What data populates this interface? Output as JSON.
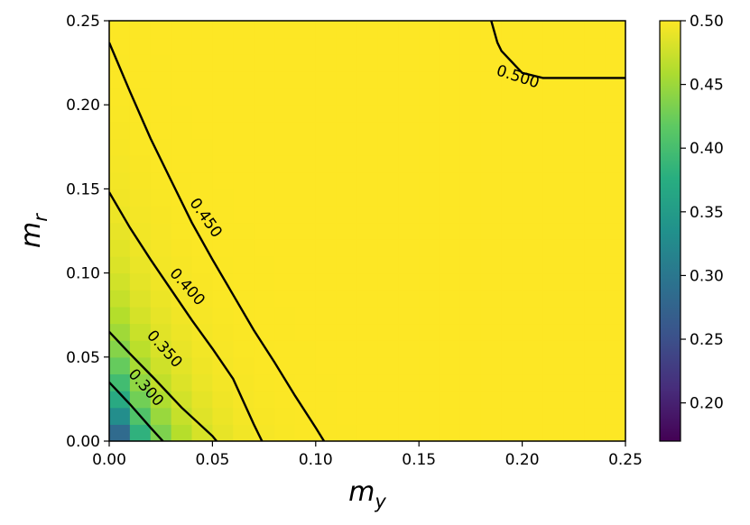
{
  "chart_data": {
    "type": "heatmap",
    "title": "",
    "xlabel": "m_y",
    "ylabel": "m_r",
    "xlim": [
      0.0,
      0.25
    ],
    "ylim": [
      0.0,
      0.25
    ],
    "x_ticks": [
      "0.00",
      "0.05",
      "0.10",
      "0.15",
      "0.20",
      "0.25"
    ],
    "y_ticks": [
      "0.00",
      "0.05",
      "0.10",
      "0.15",
      "0.20",
      "0.25"
    ],
    "grid_resolution": 25,
    "colormap": "viridis",
    "colorbar": {
      "range": [
        0.17,
        0.5
      ],
      "ticks": [
        "0.20",
        "0.25",
        "0.30",
        "0.35",
        "0.40",
        "0.45",
        "0.50"
      ]
    },
    "contours": [
      {
        "level": 0.3,
        "label": "0.300",
        "points": [
          [
            0.0,
            0.035
          ],
          [
            0.01,
            0.022
          ],
          [
            0.02,
            0.008
          ],
          [
            0.026,
            0.0
          ]
        ]
      },
      {
        "level": 0.35,
        "label": "0.350",
        "points": [
          [
            0.0,
            0.065
          ],
          [
            0.01,
            0.052
          ],
          [
            0.022,
            0.037
          ],
          [
            0.035,
            0.02
          ],
          [
            0.05,
            0.003
          ],
          [
            0.052,
            0.0
          ]
        ]
      },
      {
        "level": 0.4,
        "label": "0.400",
        "points": [
          [
            0.0,
            0.148
          ],
          [
            0.01,
            0.127
          ],
          [
            0.02,
            0.108
          ],
          [
            0.03,
            0.09
          ],
          [
            0.04,
            0.072
          ],
          [
            0.05,
            0.055
          ],
          [
            0.06,
            0.037
          ],
          [
            0.07,
            0.01
          ],
          [
            0.074,
            0.0
          ]
        ]
      },
      {
        "level": 0.45,
        "label": "0.450",
        "points": [
          [
            0.0,
            0.237
          ],
          [
            0.01,
            0.208
          ],
          [
            0.02,
            0.18
          ],
          [
            0.03,
            0.155
          ],
          [
            0.04,
            0.13
          ],
          [
            0.05,
            0.108
          ],
          [
            0.06,
            0.087
          ],
          [
            0.07,
            0.066
          ],
          [
            0.08,
            0.047
          ],
          [
            0.09,
            0.027
          ],
          [
            0.1,
            0.008
          ],
          [
            0.104,
            0.0
          ]
        ]
      },
      {
        "level": 0.5,
        "label": "0.500",
        "points": [
          [
            0.185,
            0.25
          ],
          [
            0.188,
            0.237
          ],
          [
            0.19,
            0.232
          ],
          [
            0.2,
            0.219
          ],
          [
            0.21,
            0.216
          ],
          [
            0.25,
            0.216
          ]
        ]
      }
    ],
    "contour_label_positions": [
      {
        "label": "0.300",
        "x": 0.018,
        "y": 0.032,
        "angle": 48
      },
      {
        "label": "0.350",
        "x": 0.027,
        "y": 0.055,
        "angle": 48
      },
      {
        "label": "0.400",
        "x": 0.038,
        "y": 0.092,
        "angle": 48
      },
      {
        "label": "0.450",
        "x": 0.047,
        "y": 0.133,
        "angle": 55
      },
      {
        "label": "0.500",
        "x": 0.198,
        "y": 0.217,
        "angle": 18
      }
    ]
  }
}
